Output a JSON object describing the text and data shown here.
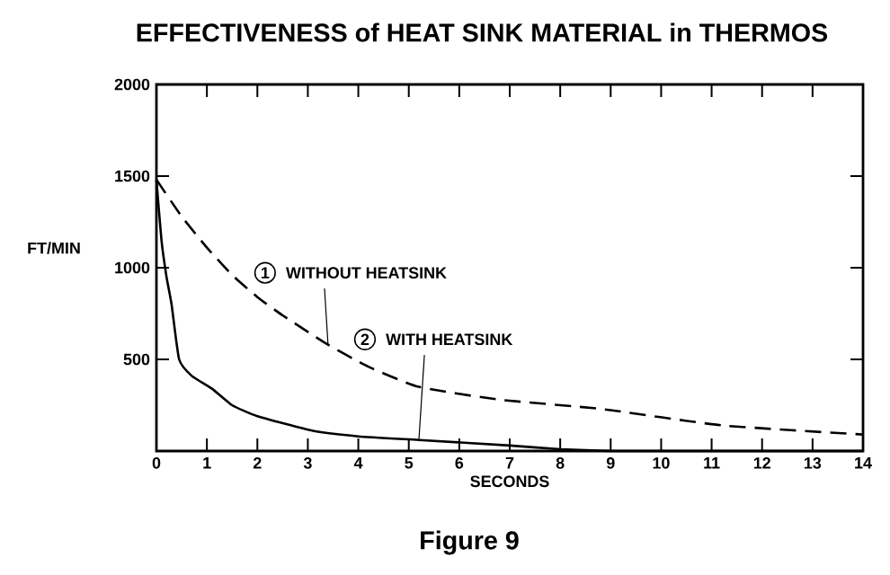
{
  "chart_data": {
    "type": "line",
    "title": "EFFECTIVENESS of HEAT SINK MATERIAL in THERMOS",
    "xlabel": "SECONDS",
    "ylabel": "FT/MIN",
    "xlim": [
      0,
      14
    ],
    "ylim": [
      0,
      2000
    ],
    "xticks": [
      0,
      1,
      2,
      3,
      4,
      5,
      6,
      7,
      8,
      9,
      10,
      11,
      12,
      13,
      14
    ],
    "yticks": [
      500,
      1000,
      1500,
      2000
    ],
    "marker": "none",
    "legend": "center",
    "series": [
      {
        "name": "WITHOUT HEATSINK",
        "color": "#000000",
        "line_style": "dashed",
        "x": [
          0,
          0.5,
          1,
          1.5,
          2,
          2.5,
          3.4,
          4.2,
          5.2,
          6.8,
          8.8,
          11.2,
          14
        ],
        "values": [
          1480,
          1280,
          1110,
          960,
          840,
          740,
          580,
          460,
          350,
          280,
          230,
          140,
          90
        ]
      },
      {
        "name": "WITH HEATSINK",
        "color": "#000000",
        "line_style": "solid",
        "x": [
          0,
          0.1,
          0.2,
          0.3,
          0.45,
          0.7,
          1.1,
          1.5,
          2,
          3.1,
          4,
          5.2,
          7,
          8,
          9,
          10,
          14
        ],
        "values": [
          1480,
          1150,
          950,
          800,
          500,
          410,
          340,
          250,
          190,
          110,
          80,
          60,
          30,
          10,
          0,
          0,
          0
        ]
      }
    ],
    "annotations": [
      "1",
      "2",
      "Figure 9"
    ]
  }
}
